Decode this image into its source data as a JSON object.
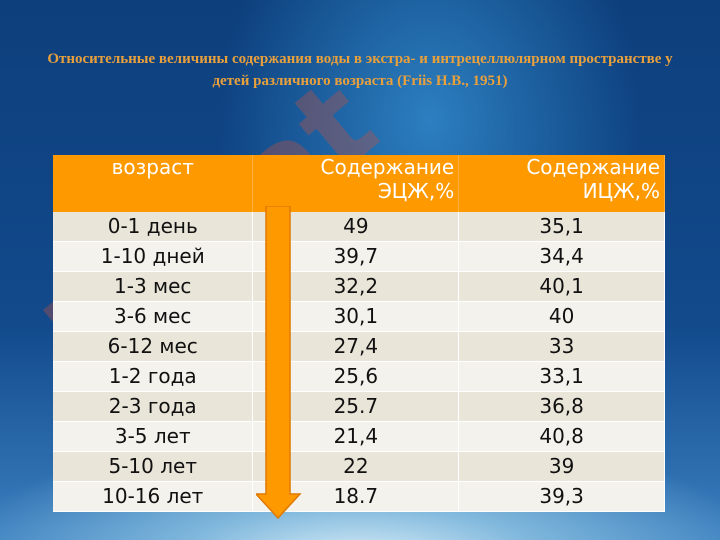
{
  "title": "Относительные величины содержания воды в экстра- и интрецеллюлярном пространстве у детей различного возраста (Friis Н.В., 1951)",
  "watermark": "Lujiat",
  "table": {
    "header": [
      "возраст",
      "Содержание ЭЦЖ,%",
      "Содержание ИЦЖ,%"
    ],
    "rows": [
      [
        "0-1 день",
        "49",
        "35,1"
      ],
      [
        "1-10 дней",
        "39,7",
        "34,4"
      ],
      [
        "1-3 мес",
        "32,2",
        "40,1"
      ],
      [
        "3-6 мес",
        "30,1",
        "40"
      ],
      [
        "6-12 мес",
        "27,4",
        "33"
      ],
      [
        "1-2 года",
        "25,6",
        "33,1"
      ],
      [
        "2-3 года",
        "25.7",
        "36,8"
      ],
      [
        "3-5 лет",
        "21,4",
        "40,8"
      ],
      [
        "5-10 лет",
        "22",
        "39"
      ],
      [
        "10-16 лет",
        "18.7",
        "39,3"
      ]
    ]
  }
}
